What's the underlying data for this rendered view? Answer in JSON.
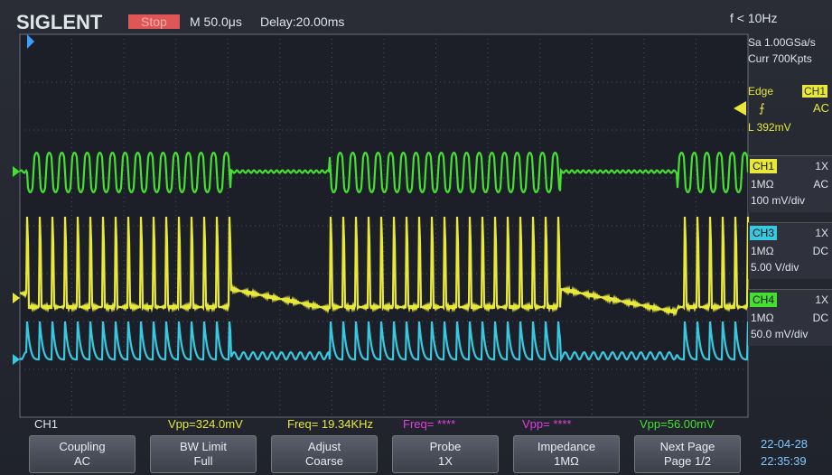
{
  "header": {
    "brand": "SIGLENT",
    "status": "Stop",
    "timebase": "M 50.0μs",
    "delay": "Delay:20.00ms",
    "trigger_freq": "f < 10Hz"
  },
  "acquisition": {
    "sample_rate": "Sa 1.00GSa/s",
    "memory_depth": "Curr 700Kpts"
  },
  "trigger": {
    "type": "Edge",
    "source": "CH1",
    "coupling": "AC",
    "level": "L 392mV"
  },
  "channels": [
    {
      "name": "CH1",
      "probe": "1X",
      "impedance": "1MΩ",
      "coupling": "AC",
      "scale": "100 mV/div"
    },
    {
      "name": "CH3",
      "probe": "1X",
      "impedance": "1MΩ",
      "coupling": "DC",
      "scale": "5.00 V/div"
    },
    {
      "name": "CH4",
      "probe": "1X",
      "impedance": "1MΩ",
      "coupling": "DC",
      "scale": "50.0 mV/div"
    }
  ],
  "measurements": {
    "source": "CH1",
    "items": [
      "Vpp=324.0mV",
      "Freq= 19.34KHz",
      "Freq= ****",
      "Vpp= ****",
      "Vpp=56.00mV"
    ]
  },
  "softkeys": [
    {
      "label": "Coupling",
      "value": "AC"
    },
    {
      "label": "BW Limit",
      "value": "Full"
    },
    {
      "label": "Adjust",
      "value": "Coarse"
    },
    {
      "label": "Probe",
      "value": "1X"
    },
    {
      "label": "Impedance",
      "value": "1MΩ"
    },
    {
      "label": "Next Page",
      "value": "Page 1/2"
    }
  ],
  "clock": {
    "date": "22-04-28",
    "time": "22:35:39"
  }
}
